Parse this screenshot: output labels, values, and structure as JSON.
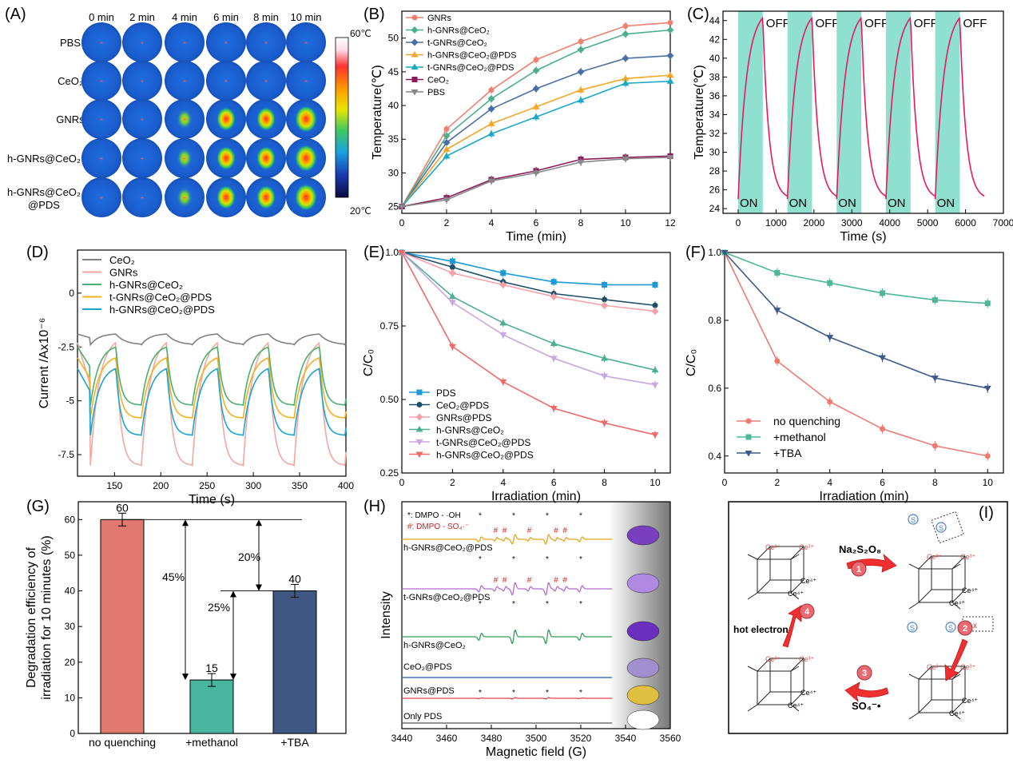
{
  "panels": {
    "A": "(A)",
    "B": "(B)",
    "C": "(C)",
    "D": "(D)",
    "E": "(E)",
    "F": "(F)",
    "G": "(G)",
    "H": "(H)",
    "I": "(I)"
  },
  "colors": {
    "GNRs": "#f08070",
    "h-GNRs@CeO2": "#4caf8c",
    "t-GNRs@CeO2": "#4a6fa5",
    "h-GNRs@CeO2@PDS": "#f5a623",
    "t-GNRs@CeO2@PDS": "#19a8c6",
    "CeO2": "#8b1a5a",
    "PBS": "#888888",
    "pink_curve": "#e6195f",
    "on_band": "#8fe0cf",
    "D_CeO2": "#808080",
    "D_GNRs": "#f4a7a0",
    "D_h": "#4caf72",
    "D_t": "#f5b021",
    "D_hp": "#1aa5d0",
    "E_PDS": "#1a9ad6",
    "E_CeO2PDS": "#1c4f66",
    "E_GNRsPDS": "#f7a0a8",
    "E_h": "#4caf95",
    "E_t": "#c9a8e0",
    "E_hp": "#f06a6a",
    "F_no": "#ef7a72",
    "F_meth": "#4cb89a",
    "F_tba": "#3e5a8c",
    "bar_no": "#e07970",
    "bar_meth": "#48b59e",
    "bar_tba": "#3f5783",
    "epr_1": "#e8a317",
    "epr_2": "#b46ad0",
    "epr_3": "#2e9e55",
    "epr_4": "#1f5ab0",
    "epr_5": "#e04848",
    "epr_6": "#555555"
  },
  "A": {
    "times": [
      "0 min",
      "2 min",
      "4 min",
      "6 min",
      "8 min",
      "10 min"
    ],
    "rows": [
      "PBS",
      "CeO₂",
      "GNRs",
      "h-GNRs@CeO₂",
      "h-GNRs@CeO₂",
      "@PDS"
    ],
    "scale_max": "60℃",
    "scale_min": "20℃"
  },
  "chart_data": [
    {
      "panel": "B",
      "type": "line",
      "xlabel": "Time (min)",
      "ylabel": "Temperature(℃)",
      "xlim": [
        0,
        12
      ],
      "ylim": [
        24,
        54
      ],
      "xticks": [
        "0",
        "2",
        "4",
        "6",
        "8",
        "10",
        "12"
      ],
      "yticks": [
        "25",
        "30",
        "35",
        "40",
        "45",
        "50"
      ],
      "x": [
        0,
        2,
        4,
        6,
        8,
        10,
        12
      ],
      "series": [
        {
          "name": "GNRs",
          "values": [
            25,
            36.5,
            42.3,
            46.8,
            49.5,
            51.8,
            52.3
          ]
        },
        {
          "name": "h-GNRs@CeO₂",
          "values": [
            25,
            35.5,
            41,
            45.2,
            48.3,
            50.6,
            51.2
          ]
        },
        {
          "name": "t-GNRs@CeO₂",
          "values": [
            25,
            34.5,
            39.5,
            42.5,
            45,
            47,
            47.4
          ]
        },
        {
          "name": "h-GNRs@CeO₂@PDS",
          "values": [
            25,
            33.5,
            37.3,
            39.8,
            42.3,
            44,
            44.5
          ]
        },
        {
          "name": "t-GNRs@CeO₂@PDS",
          "values": [
            25,
            32.5,
            35.8,
            38.3,
            40.8,
            43.3,
            43.6
          ]
        },
        {
          "name": "CeO₂",
          "values": [
            25,
            26.3,
            29,
            30.3,
            32,
            32.3,
            32.5
          ]
        },
        {
          "name": "PBS",
          "values": [
            25,
            26,
            28.8,
            30,
            31.6,
            32.1,
            32.3
          ]
        }
      ]
    },
    {
      "panel": "C",
      "type": "line",
      "xlabel": "Time (s)",
      "ylabel": "Temperature(℃)",
      "xlim": [
        -400,
        7000
      ],
      "ylim": [
        23.5,
        45
      ],
      "xticks": [
        "0",
        "1000",
        "2000",
        "3000",
        "4000",
        "5000",
        "6000",
        "7000"
      ],
      "yticks": [
        "24",
        "26",
        "28",
        "30",
        "32",
        "34",
        "36",
        "38",
        "40",
        "42",
        "44"
      ],
      "on_label": "ON",
      "off_label": "OFF",
      "cycles": 5,
      "period_s": 1300,
      "on_duration_s": 650,
      "min_temp": 25,
      "max_temp": 44.3
    },
    {
      "panel": "D",
      "type": "line",
      "xlabel": "Time (s)",
      "ylabel": "Current /Ax10⁻⁶",
      "xlim": [
        110,
        400
      ],
      "ylim": [
        -8.5,
        2
      ],
      "xticks": [
        "150",
        "200",
        "250",
        "300",
        "350",
        "400"
      ],
      "yticks": [
        "0",
        "-2.5",
        "-5",
        "-7.5"
      ],
      "period_s": 55,
      "first_on_s": 124,
      "series": [
        {
          "name": "CeO₂",
          "high": -1.9,
          "low": -2.4
        },
        {
          "name": "GNRs",
          "high": -2.3,
          "low": -8.0
        },
        {
          "name": "h-GNRs@CeO₂",
          "high": -2.5,
          "low": -5.2
        },
        {
          "name": "t-GNRs@CeO₂@PDS",
          "high": -3.0,
          "low": -5.8
        },
        {
          "name": "h-GNRs@CeO₂@PDS",
          "high": -3.5,
          "low": -6.6
        }
      ]
    },
    {
      "panel": "E",
      "type": "line",
      "xlabel": "Irradiation (min)",
      "ylabel": "C/C₀",
      "xlim": [
        0,
        10.6
      ],
      "ylim": [
        0.25,
        1.0
      ],
      "xticks": [
        "0",
        "2",
        "4",
        "6",
        "8",
        "10"
      ],
      "yticks": [
        "0.25",
        "0.50",
        "0.75",
        "1.0"
      ],
      "x": [
        0,
        2,
        4,
        6,
        8,
        10
      ],
      "series": [
        {
          "name": "PDS",
          "values": [
            1,
            0.97,
            0.93,
            0.9,
            0.89,
            0.89
          ]
        },
        {
          "name": "CeO₂@PDS",
          "values": [
            1,
            0.95,
            0.9,
            0.86,
            0.84,
            0.82
          ]
        },
        {
          "name": "GNRs@PDS",
          "values": [
            1,
            0.93,
            0.89,
            0.85,
            0.82,
            0.8
          ]
        },
        {
          "name": "h-GNRs@CeO₂",
          "values": [
            1,
            0.85,
            0.76,
            0.69,
            0.64,
            0.6
          ]
        },
        {
          "name": "t-GNRs@CeO₂@PDS",
          "values": [
            1,
            0.83,
            0.72,
            0.64,
            0.58,
            0.55
          ]
        },
        {
          "name": "h-GNRs@CeO₂@PDS",
          "values": [
            1,
            0.68,
            0.56,
            0.47,
            0.42,
            0.38
          ]
        }
      ]
    },
    {
      "panel": "F",
      "type": "line",
      "xlabel": "Irradiation (min)",
      "ylabel": "C/C₀",
      "xlim": [
        0,
        10.6
      ],
      "ylim": [
        0.35,
        1.0
      ],
      "xticks": [
        "0",
        "2",
        "4",
        "6",
        "8",
        "10"
      ],
      "yticks": [
        "0.4",
        "0.6",
        "0.8",
        "1.0"
      ],
      "x": [
        0,
        2,
        4,
        6,
        8,
        10
      ],
      "series": [
        {
          "name": "no quenching",
          "values": [
            1,
            0.68,
            0.56,
            0.48,
            0.43,
            0.4
          ]
        },
        {
          "name": "+methanol",
          "values": [
            1,
            0.94,
            0.91,
            0.88,
            0.86,
            0.85
          ]
        },
        {
          "name": "+TBA",
          "values": [
            1,
            0.83,
            0.75,
            0.69,
            0.63,
            0.6
          ]
        }
      ]
    },
    {
      "panel": "G",
      "type": "bar",
      "categories": [
        "no quenching",
        "+methanol",
        "+TBA"
      ],
      "values": [
        60,
        15,
        40
      ],
      "value_labels": [
        "60",
        "15",
        "40"
      ],
      "ylabel": "Degradation efficiency of",
      "ylabel2": "irradiation for 10 minutes (%)",
      "ylim": [
        0,
        65
      ],
      "yticks": [
        "0",
        "10",
        "20",
        "30",
        "40",
        "50",
        "60"
      ],
      "annotations": [
        "45%",
        "20%",
        "25%"
      ]
    },
    {
      "panel": "H",
      "type": "line",
      "xlabel": "Magnetic field (G)",
      "ylabel": "Intensity",
      "xlim": [
        3440,
        3560
      ],
      "xticks": [
        "3440",
        "3460",
        "3480",
        "3500",
        "3520",
        "3540",
        "3560"
      ],
      "legend": [
        "*: DMPO - ·OH",
        "#: DMPO - SO₄·⁻"
      ],
      "series": [
        {
          "name": "h-GNRs@CeO₂@PDS"
        },
        {
          "name": "t-GNRs@CeO₂@PDS"
        },
        {
          "name": "h-GNRs@CeO₂"
        },
        {
          "name": "CeO₂@PDS"
        },
        {
          "name": "GNRs@PDS"
        },
        {
          "name": "Only PDS"
        }
      ]
    }
  ],
  "I": {
    "reagent": "Na₂S₂O₈",
    "steps": [
      "1",
      "2",
      "3",
      "4"
    ],
    "hot_electron": "hot electron",
    "radical": "SO₄⁻•",
    "ce3": "Ce³⁺",
    "ce4": "Ce⁴⁺"
  }
}
